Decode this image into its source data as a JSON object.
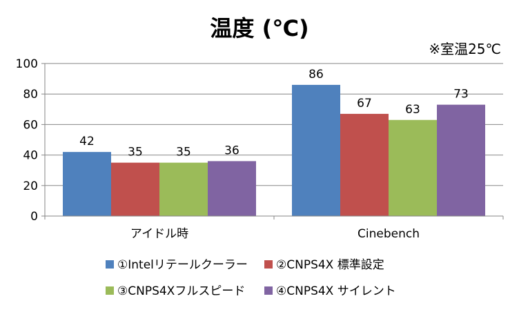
{
  "chart_data": {
    "type": "bar",
    "title": "温度 (℃)",
    "note": "※室温25℃",
    "categories": [
      "アイドル時",
      "Cinebench"
    ],
    "series": [
      {
        "name": "①Intelリテールクーラー",
        "color": "#4f81bd",
        "values": [
          42,
          86
        ]
      },
      {
        "name": "②CNPS4X 標準設定",
        "color": "#c0504d",
        "values": [
          35,
          67
        ]
      },
      {
        "name": "③CNPS4Xフルスピード",
        "color": "#9bbb59",
        "values": [
          35,
          63
        ]
      },
      {
        "name": "④CNPS4X サイレント",
        "color": "#8064a2",
        "values": [
          36,
          73
        ]
      }
    ],
    "ylim": [
      0,
      100
    ],
    "yticks": [
      0,
      20,
      40,
      60,
      80,
      100
    ],
    "grid": true,
    "legend_position": "bottom"
  }
}
